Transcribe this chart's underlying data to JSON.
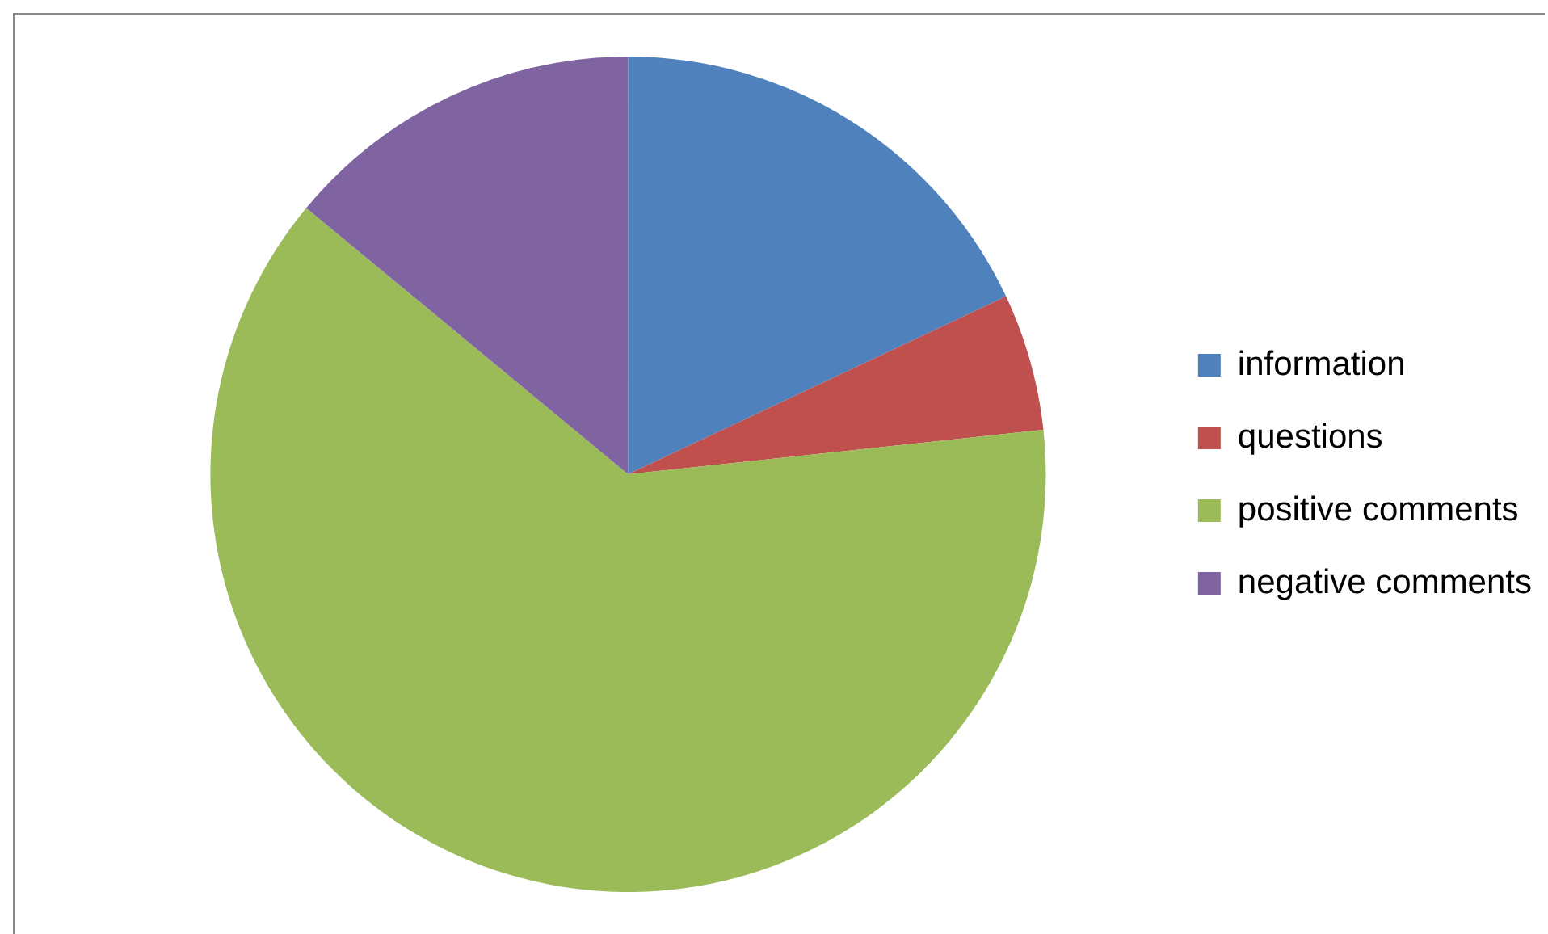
{
  "chart_data": {
    "type": "pie",
    "categories": [
      "information",
      "questions",
      "positive comments",
      "negative comments"
    ],
    "values": [
      18,
      5.3,
      62.7,
      14
    ],
    "colors": [
      "#4f81bd",
      "#c0504d",
      "#9bbb59",
      "#8064a2"
    ],
    "legend": "right"
  }
}
